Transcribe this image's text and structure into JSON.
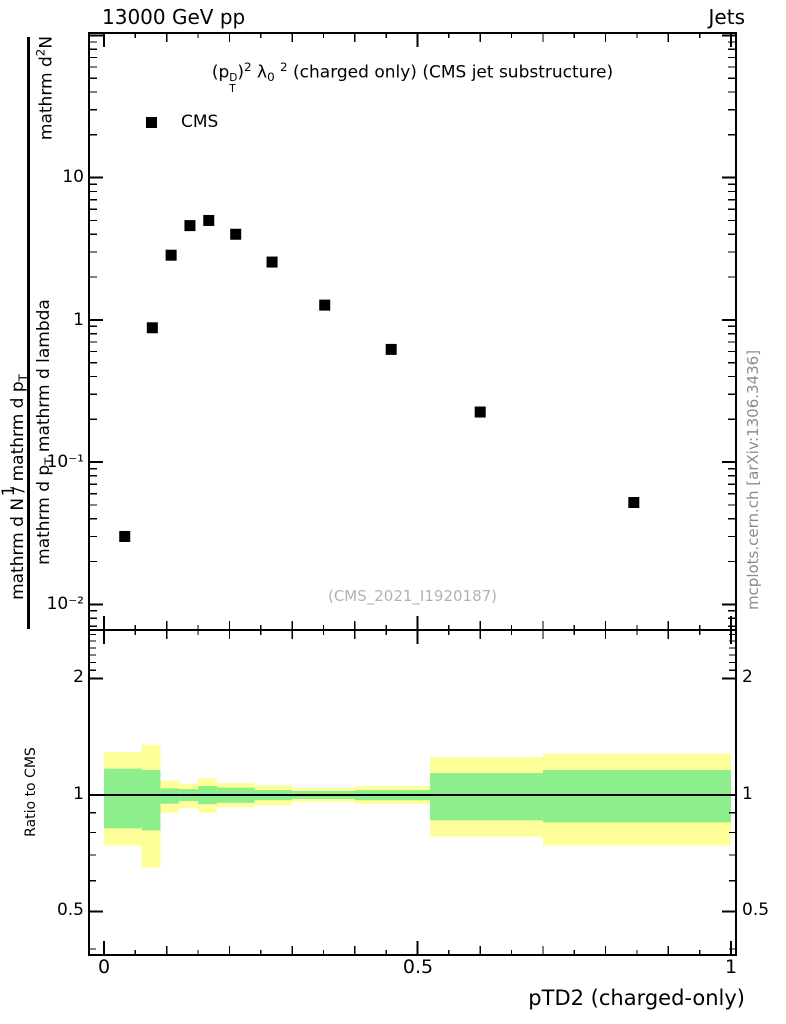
{
  "header": {
    "left": "13000 GeV pp",
    "right": "Jets"
  },
  "right_note": "mcplots.cern.ch [arXiv:1306.3436]",
  "x_axis": {
    "label": "pTD2 (charged-only)",
    "ticks": [
      "0",
      "0.5",
      "1"
    ]
  },
  "main_plot": {
    "title_segments": [
      {
        "t": "(p"
      },
      {
        "pos": "stack",
        "sup": "D",
        "sub": "T"
      },
      {
        "t": ")"
      },
      {
        "t": "2",
        "pos": "sup"
      },
      {
        "t": " λ"
      },
      {
        "t": "0",
        "pos": "sub"
      },
      {
        "t": " "
      },
      {
        "t": "2",
        "pos": "sup"
      },
      {
        "t": " (charged only) (CMS jet substructure)"
      }
    ],
    "legend": {
      "label": "CMS",
      "marker": "filled-square",
      "marker_color": "#000000"
    },
    "watermark": "(CMS_2021_I1920187)",
    "y_ticks": [
      "10",
      "1",
      "10⁻¹",
      "10⁻²"
    ],
    "y_label": {
      "prefix": "1",
      "outer_segments": [
        {
          "t": "mathrm d N / mathrm d p"
        },
        {
          "t": "T",
          "pos": "sub"
        }
      ],
      "inner_top_segments": [
        {
          "t": "mathrm d"
        },
        {
          "t": "2",
          "pos": "sup"
        },
        {
          "t": "N"
        }
      ],
      "inner_main_segments": [
        {
          "t": "mathrm d p"
        },
        {
          "t": "T",
          "pos": "sub"
        },
        {
          "t": " mathrm d lambda"
        }
      ]
    }
  },
  "ratio_plot": {
    "y_label": "Ratio to CMS",
    "y_ticks_left": [
      "2",
      "1",
      "0.5"
    ],
    "y_ticks_right": [
      "2",
      "1",
      "0.5"
    ]
  },
  "colors": {
    "band_yellow": "#ffff99",
    "band_green": "#8cef8c",
    "marker": "#000000",
    "reference_line": "#000000",
    "watermark_gray": "#b2b2b2",
    "credit_gray": "#8c8c8c"
  },
  "chart_data": [
    {
      "type": "scatter",
      "title": "(p_T^D)^2 lambda_0^2 (charged only) (CMS jet substructure)",
      "xlabel": "pTD2 (charged-only)",
      "yscale": "log",
      "xlim": [
        -0.024,
        1.008
      ],
      "ylim": [
        0.0066,
        104
      ],
      "xticks": [
        0,
        0.5,
        1
      ],
      "yticks": [
        0.01,
        0.1,
        1,
        10
      ],
      "legend_position": "top-left-inside",
      "series": [
        {
          "name": "CMS",
          "marker": "filled-square",
          "color": "#000000",
          "points": [
            [
              0.033,
              0.03
            ],
            [
              0.077,
              0.88
            ],
            [
              0.107,
              2.85
            ],
            [
              0.137,
              4.6
            ],
            [
              0.167,
              5.0
            ],
            [
              0.21,
              4.0
            ],
            [
              0.268,
              2.55
            ],
            [
              0.352,
              1.27
            ],
            [
              0.458,
              0.62
            ],
            [
              0.6,
              0.225
            ],
            [
              0.845,
              0.052
            ]
          ]
        }
      ]
    },
    {
      "type": "ratio-band",
      "ylabel": "Ratio to CMS",
      "yscale": "log",
      "xlim": [
        -0.024,
        1.008
      ],
      "ylim": [
        0.386,
        2.67
      ],
      "yticks": [
        0.5,
        1,
        2
      ],
      "yminors": [
        0.4,
        0.6,
        0.7,
        0.8,
        0.9,
        2.1,
        2.2,
        2.3,
        2.4,
        2.5,
        2.6
      ],
      "reference_line": 1,
      "band_colors": {
        "outer": "#ffff99",
        "inner": "#8cef8c"
      },
      "bins": [
        {
          "x": [
            0.0,
            0.06
          ],
          "yellow": [
            0.74,
            1.29
          ],
          "green": [
            0.82,
            1.17
          ]
        },
        {
          "x": [
            0.06,
            0.09
          ],
          "yellow": [
            0.65,
            1.35
          ],
          "green": [
            0.81,
            1.16
          ]
        },
        {
          "x": [
            0.09,
            0.12
          ],
          "yellow": [
            0.9,
            1.09
          ],
          "green": [
            0.95,
            1.04
          ]
        },
        {
          "x": [
            0.12,
            0.15
          ],
          "yellow": [
            0.925,
            1.07
          ],
          "green": [
            0.965,
            1.036
          ]
        },
        {
          "x": [
            0.15,
            0.18
          ],
          "yellow": [
            0.9,
            1.106
          ],
          "green": [
            0.947,
            1.055
          ]
        },
        {
          "x": [
            0.18,
            0.24
          ],
          "yellow": [
            0.93,
            1.074
          ],
          "green": [
            0.955,
            1.045
          ]
        },
        {
          "x": [
            0.24,
            0.3
          ],
          "yellow": [
            0.94,
            1.06
          ],
          "green": [
            0.97,
            1.03
          ]
        },
        {
          "x": [
            0.3,
            0.4
          ],
          "yellow": [
            0.96,
            1.043
          ],
          "green": [
            0.977,
            1.024
          ]
        },
        {
          "x": [
            0.4,
            0.52
          ],
          "yellow": [
            0.948,
            1.055
          ],
          "green": [
            0.97,
            1.03
          ]
        },
        {
          "x": [
            0.52,
            0.7
          ],
          "yellow": [
            0.78,
            1.254
          ],
          "green": [
            0.86,
            1.14
          ]
        },
        {
          "x": [
            0.7,
            1.0
          ],
          "yellow": [
            0.74,
            1.28
          ],
          "green": [
            0.85,
            1.16
          ]
        }
      ]
    }
  ]
}
